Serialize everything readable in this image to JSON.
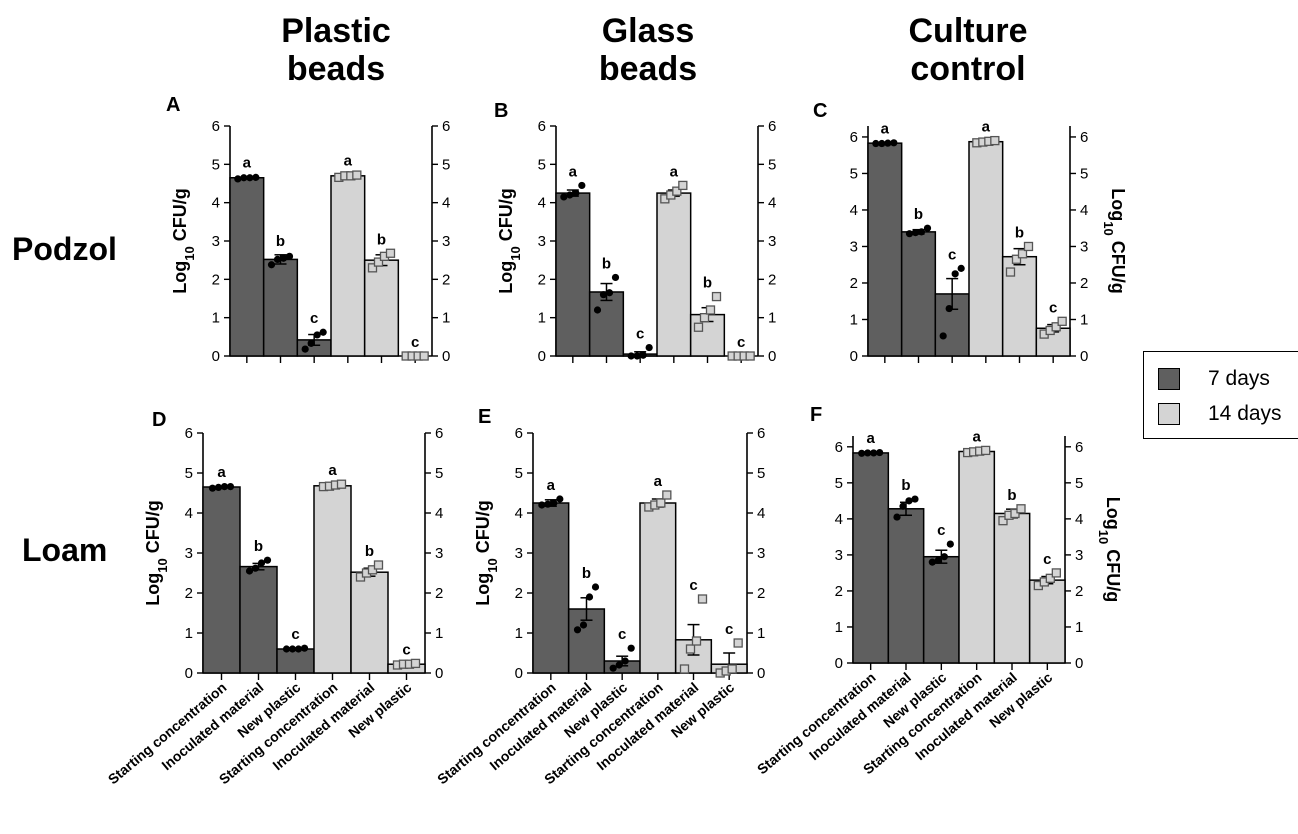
{
  "columns": [
    "Plastic\nbeads",
    "Glass\nbeads",
    "Culture\ncontrol"
  ],
  "rows": [
    "Podzol",
    "Loam"
  ],
  "legend": [
    {
      "label": "7 days",
      "color": "#5f5f5f"
    },
    {
      "label": "14 days",
      "color": "#d4d4d4"
    }
  ],
  "categories": [
    "Starting concentration",
    "Inoculated material",
    "New plastic",
    "Starting concentration",
    "Inoculated material",
    "New plastic"
  ],
  "ylabel": "Log10 CFU/g",
  "chart_data": [
    {
      "panel": "A",
      "type": "bar",
      "ylim": [
        0,
        6
      ],
      "yticks": [
        0,
        1,
        2,
        3,
        4,
        5,
        6
      ],
      "values": [
        4.65,
        2.52,
        0.42,
        4.7,
        2.5,
        0.0
      ],
      "errors": [
        0.03,
        0.12,
        0.14,
        0.04,
        0.14,
        0.0
      ],
      "letters": [
        "a",
        "b",
        "c",
        "a",
        "b",
        "c"
      ],
      "points": [
        [
          4.62,
          4.65,
          4.65,
          4.66
        ],
        [
          2.38,
          2.52,
          2.55,
          2.6
        ],
        [
          0.18,
          0.33,
          0.55,
          0.62
        ],
        [
          4.66,
          4.7,
          4.7,
          4.72
        ],
        [
          2.3,
          2.45,
          2.6,
          2.68
        ],
        [
          0.0,
          0.0,
          0.0,
          0.0
        ]
      ]
    },
    {
      "panel": "B",
      "type": "bar",
      "ylim": [
        0,
        6
      ],
      "yticks": [
        0,
        1,
        2,
        3,
        4,
        5,
        6
      ],
      "values": [
        4.25,
        1.67,
        0.05,
        4.25,
        1.08,
        0.0
      ],
      "errors": [
        0.08,
        0.22,
        0.06,
        0.08,
        0.18,
        0.0
      ],
      "letters": [
        "a",
        "b",
        "c",
        "a",
        "b",
        "c"
      ],
      "points": [
        [
          4.15,
          4.2,
          4.25,
          4.45
        ],
        [
          1.2,
          1.6,
          1.65,
          2.05
        ],
        [
          0.0,
          0.0,
          0.02,
          0.22
        ],
        [
          4.1,
          4.2,
          4.3,
          4.45
        ],
        [
          0.75,
          1.0,
          1.2,
          1.55
        ],
        [
          0.0,
          0.0,
          0.0,
          0.0
        ]
      ]
    },
    {
      "panel": "C",
      "type": "bar",
      "ylim": [
        0,
        6.3
      ],
      "yticks": [
        0,
        1,
        2,
        3,
        4,
        5,
        6
      ],
      "values": [
        5.83,
        3.4,
        1.7,
        5.87,
        2.72,
        0.76
      ],
      "errors": [
        0.02,
        0.06,
        0.42,
        0.03,
        0.22,
        0.1
      ],
      "letters": [
        "a",
        "b",
        "c",
        "a",
        "b",
        "c"
      ],
      "points": [
        [
          5.82,
          5.82,
          5.83,
          5.84
        ],
        [
          3.35,
          3.38,
          3.4,
          3.5
        ],
        [
          0.55,
          1.3,
          2.25,
          2.4
        ],
        [
          5.84,
          5.86,
          5.88,
          5.9
        ],
        [
          2.3,
          2.65,
          2.8,
          3.0
        ],
        [
          0.6,
          0.7,
          0.8,
          0.95
        ]
      ]
    },
    {
      "panel": "D",
      "type": "bar",
      "ylim": [
        0,
        6
      ],
      "yticks": [
        0,
        1,
        2,
        3,
        4,
        5,
        6
      ],
      "values": [
        4.65,
        2.66,
        0.6,
        4.68,
        2.52,
        0.22
      ],
      "errors": [
        0.02,
        0.08,
        0.0,
        0.03,
        0.1,
        0.02
      ],
      "letters": [
        "a",
        "b",
        "c",
        "a",
        "b",
        "c"
      ],
      "points": [
        [
          4.62,
          4.64,
          4.66,
          4.66
        ],
        [
          2.55,
          2.62,
          2.75,
          2.82
        ],
        [
          0.6,
          0.6,
          0.6,
          0.62
        ],
        [
          4.66,
          4.67,
          4.7,
          4.72
        ],
        [
          2.4,
          2.5,
          2.58,
          2.7
        ],
        [
          0.2,
          0.22,
          0.22,
          0.24
        ]
      ]
    },
    {
      "panel": "E",
      "type": "bar",
      "ylim": [
        0,
        6
      ],
      "yticks": [
        0,
        1,
        2,
        3,
        4,
        5,
        6
      ],
      "values": [
        4.25,
        1.6,
        0.3,
        4.25,
        0.83,
        0.22
      ],
      "errors": [
        0.08,
        0.28,
        0.12,
        0.1,
        0.38,
        0.28
      ],
      "letters": [
        "a",
        "b",
        "c",
        "a",
        "c",
        "c"
      ],
      "points": [
        [
          4.2,
          4.22,
          4.25,
          4.35
        ],
        [
          1.08,
          1.2,
          1.9,
          2.15
        ],
        [
          0.12,
          0.2,
          0.3,
          0.62
        ],
        [
          4.15,
          4.2,
          4.25,
          4.45
        ],
        [
          0.1,
          0.6,
          0.8,
          1.85
        ],
        [
          0.0,
          0.05,
          0.1,
          0.75
        ]
      ]
    },
    {
      "panel": "F",
      "type": "bar",
      "ylim": [
        0,
        6.3
      ],
      "yticks": [
        0,
        1,
        2,
        3,
        4,
        5,
        6
      ],
      "values": [
        5.83,
        4.28,
        2.95,
        5.87,
        4.15,
        2.3
      ],
      "errors": [
        0.02,
        0.18,
        0.18,
        0.03,
        0.12,
        0.1
      ],
      "letters": [
        "a",
        "b",
        "c",
        "a",
        "b",
        "c"
      ],
      "points": [
        [
          5.82,
          5.83,
          5.83,
          5.84
        ],
        [
          4.05,
          4.35,
          4.5,
          4.55
        ],
        [
          2.8,
          2.85,
          2.95,
          3.3
        ],
        [
          5.84,
          5.86,
          5.88,
          5.9
        ],
        [
          3.95,
          4.1,
          4.15,
          4.28
        ],
        [
          2.15,
          2.25,
          2.35,
          2.5
        ]
      ]
    }
  ]
}
